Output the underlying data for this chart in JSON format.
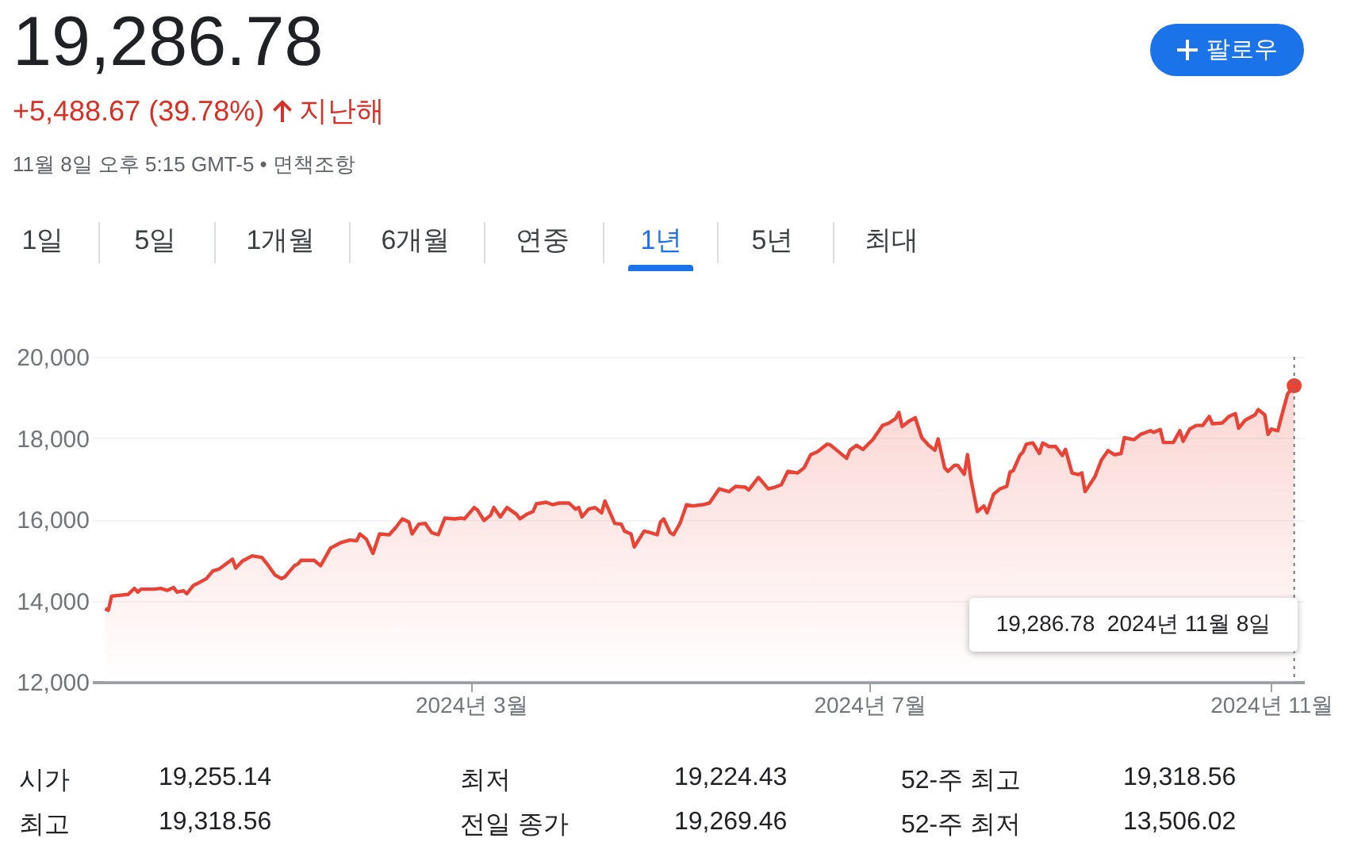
{
  "chart_data": {
    "type": "area",
    "title": "19,286.78",
    "subtitle": "+5,488.67 (39.78%)",
    "annotations": [
      "지난해",
      "11월 8일 오후 5:15 GMT-5 • 면책조항",
      "1일",
      "5일",
      "1개월",
      "6개월",
      "연중",
      "1년",
      "5년",
      "최대",
      "팔로우",
      "시가",
      "19,255.14",
      "최저",
      "19,224.43",
      "52-주 최고",
      "19,318.56",
      "최고",
      "19,318.56",
      "전일 종가",
      "19,269.46",
      "52-주 최저",
      "13,506.02",
      "19,286.78  2024년 11월 8일"
    ],
    "xlim": [
      "2023-11-06",
      "2024-11-11"
    ],
    "xticks": [
      {
        "value": "2024-03-01",
        "label": "2024년 3월"
      },
      {
        "value": "2024-07-01",
        "label": "2024년 7월"
      },
      {
        "value": "2024-11-01",
        "label": "2024년 11월"
      }
    ],
    "ylim": [
      12000,
      20000
    ],
    "yticks": [
      {
        "value": 12000,
        "label": "12,000"
      },
      {
        "value": 14000,
        "label": "14,000"
      },
      {
        "value": 16000,
        "label": "16,000"
      },
      {
        "value": 18000,
        "label": "18,000"
      },
      {
        "value": 20000,
        "label": "20,000"
      }
    ],
    "grid": "y",
    "ref_lines": [
      {
        "axis": "x",
        "value": "2024-11-08",
        "color": "#70757a",
        "line_style": "dotted"
      }
    ],
    "series": [
      {
        "color": "#ea4335",
        "x": [
          "2023-11-10",
          "2023-11-11",
          "2023-11-12",
          "2023-11-17",
          "2023-11-19",
          "2023-11-20",
          "2023-11-21",
          "2023-11-25",
          "2023-11-27",
          "2023-11-29",
          "2023-12-01",
          "2023-12-02",
          "2023-12-04",
          "2023-12-05",
          "2023-12-07",
          "2023-12-09",
          "2023-12-11",
          "2023-12-13",
          "2023-12-15",
          "2023-12-19",
          "2023-12-20",
          "2023-12-22",
          "2023-12-25",
          "2023-12-28",
          "2023-12-30",
          "2024-01-01",
          "2024-01-03",
          "2024-01-04",
          "2024-01-07",
          "2024-01-08",
          "2024-01-09",
          "2024-01-13",
          "2024-01-15",
          "2024-01-18",
          "2024-01-21",
          "2024-01-24",
          "2024-01-26",
          "2024-01-27",
          "2024-01-29",
          "2024-01-31",
          "2024-02-02",
          "2024-02-05",
          "2024-02-07",
          "2024-02-09",
          "2024-02-11",
          "2024-02-12",
          "2024-02-14",
          "2024-02-16",
          "2024-02-18",
          "2024-02-20",
          "2024-02-22",
          "2024-02-25",
          "2024-02-27",
          "2024-02-28",
          "2024-03-02",
          "2024-03-03",
          "2024-03-05",
          "2024-03-07",
          "2024-03-08",
          "2024-03-10",
          "2024-03-12",
          "2024-03-15",
          "2024-03-16",
          "2024-03-18",
          "2024-03-20",
          "2024-03-21",
          "2024-03-24",
          "2024-03-26",
          "2024-03-28",
          "2024-03-31",
          "2024-04-02",
          "2024-04-03",
          "2024-04-04",
          "2024-04-06",
          "2024-04-08",
          "2024-04-10",
          "2024-04-11",
          "2024-04-14",
          "2024-04-16",
          "2024-04-17",
          "2024-04-19",
          "2024-04-20",
          "2024-04-23",
          "2024-04-25",
          "2024-04-27",
          "2024-04-28",
          "2024-04-29",
          "2024-05-01",
          "2024-05-02",
          "2024-05-04",
          "2024-05-06",
          "2024-05-08",
          "2024-05-11",
          "2024-05-13",
          "2024-05-16",
          "2024-05-19",
          "2024-05-21",
          "2024-05-24",
          "2024-05-25",
          "2024-05-28",
          "2024-05-29",
          "2024-05-31",
          "2024-06-02",
          "2024-06-04",
          "2024-06-06",
          "2024-06-09",
          "2024-06-11",
          "2024-06-13",
          "2024-06-15",
          "2024-06-18",
          "2024-06-19",
          "2024-06-21",
          "2024-06-24",
          "2024-06-25",
          "2024-06-27",
          "2024-06-29",
          "2024-07-02",
          "2024-07-05",
          "2024-07-07",
          "2024-07-09",
          "2024-07-10",
          "2024-07-11",
          "2024-07-13",
          "2024-07-15",
          "2024-07-17",
          "2024-07-19",
          "2024-07-21",
          "2024-07-22",
          "2024-07-24",
          "2024-07-25",
          "2024-07-27",
          "2024-07-28",
          "2024-07-30",
          "2024-07-31",
          "2024-08-01",
          "2024-08-03",
          "2024-08-05",
          "2024-08-06",
          "2024-08-08",
          "2024-08-10",
          "2024-08-12",
          "2024-08-13",
          "2024-08-14",
          "2024-08-16",
          "2024-08-17",
          "2024-08-18",
          "2024-08-20",
          "2024-08-22",
          "2024-08-23",
          "2024-08-25",
          "2024-08-27",
          "2024-08-29",
          "2024-08-30",
          "2024-09-01",
          "2024-09-03",
          "2024-09-04",
          "2024-09-05",
          "2024-09-08",
          "2024-09-10",
          "2024-09-12",
          "2024-09-14",
          "2024-09-16",
          "2024-09-17",
          "2024-09-20",
          "2024-09-22",
          "2024-09-25",
          "2024-09-26",
          "2024-09-28",
          "2024-09-29",
          "2024-10-02",
          "2024-10-04",
          "2024-10-05",
          "2024-10-07",
          "2024-10-09",
          "2024-10-11",
          "2024-10-13",
          "2024-10-14",
          "2024-10-17",
          "2024-10-19",
          "2024-10-21",
          "2024-10-22",
          "2024-10-24",
          "2024-10-27",
          "2024-10-28",
          "2024-10-30",
          "2024-10-31",
          "2024-11-01",
          "2024-11-03",
          "2024-11-04",
          "2024-11-06",
          "2024-11-08"
        ],
        "values": [
          13800,
          13760,
          14110,
          14150,
          14300,
          14210,
          14280,
          14280,
          14300,
          14250,
          14320,
          14210,
          14240,
          14170,
          14370,
          14450,
          14540,
          14730,
          14780,
          15020,
          14800,
          14970,
          15100,
          15060,
          14860,
          14630,
          14540,
          14580,
          14860,
          14900,
          14990,
          14990,
          14860,
          15290,
          15420,
          15490,
          15470,
          15640,
          15510,
          15160,
          15640,
          15620,
          15800,
          16010,
          15930,
          15640,
          15880,
          15900,
          15670,
          15620,
          16030,
          16010,
          16030,
          16010,
          16290,
          16230,
          15970,
          16100,
          16290,
          16060,
          16290,
          16120,
          16010,
          16120,
          16190,
          16380,
          16420,
          16360,
          16400,
          16400,
          16250,
          16290,
          16060,
          16250,
          16290,
          16160,
          16450,
          15900,
          15880,
          15710,
          15640,
          15320,
          15710,
          15670,
          15620,
          15930,
          16010,
          15670,
          15620,
          15900,
          16360,
          16330,
          16360,
          16400,
          16750,
          16680,
          16810,
          16790,
          16720,
          17030,
          16940,
          16750,
          16790,
          16850,
          17180,
          17140,
          17270,
          17590,
          17660,
          17850,
          17830,
          17700,
          17500,
          17700,
          17820,
          17720,
          17960,
          18310,
          18370,
          18480,
          18630,
          18280,
          18410,
          18500,
          18010,
          17830,
          17700,
          17980,
          17270,
          17180,
          17330,
          17330,
          17110,
          17590,
          17010,
          16190,
          16330,
          16160,
          16620,
          16750,
          16810,
          17160,
          17200,
          17570,
          17660,
          17850,
          17880,
          17620,
          17880,
          17790,
          17790,
          17570,
          17720,
          17140,
          17100,
          17140,
          16680,
          17050,
          17460,
          17690,
          17590,
          17620,
          18010,
          17960,
          18090,
          18180,
          18140,
          18210,
          17890,
          17890,
          18180,
          17920,
          18220,
          18310,
          18310,
          18530,
          18350,
          18370,
          18530,
          18600,
          18240,
          18440,
          18570,
          18700,
          18570,
          18090,
          18220,
          18180,
          18500,
          19090,
          19286.78
        ]
      },
      {
        "type": "scatter",
        "color": "#ea4335",
        "x": [
          "2024-11-08"
        ],
        "values": [
          19286.78
        ]
      }
    ]
  }
}
